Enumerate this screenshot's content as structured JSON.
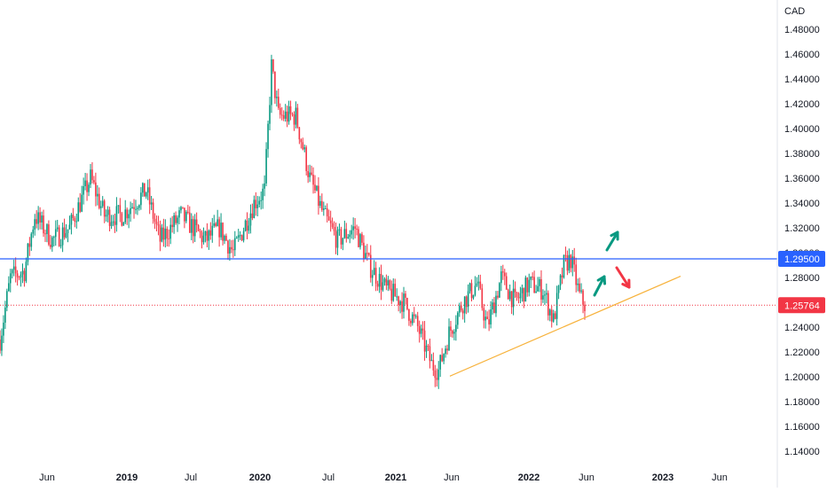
{
  "chart_data": {
    "type": "candlestick",
    "currency": "CAD",
    "ylim": [
      1.13,
      1.49
    ],
    "y_ticks": [
      "1.48000",
      "1.46000",
      "1.44000",
      "1.42000",
      "1.40000",
      "1.38000",
      "1.36000",
      "1.34000",
      "1.32000",
      "1.30000",
      "1.28000",
      "1.26000",
      "1.24000",
      "1.22000",
      "1.20000",
      "1.18000",
      "1.16000",
      "1.14000"
    ],
    "x_ticks": [
      {
        "label": "Jun",
        "bold": false
      },
      {
        "label": "2019",
        "bold": true
      },
      {
        "label": "Jul",
        "bold": false
      },
      {
        "label": "2020",
        "bold": true
      },
      {
        "label": "Jul",
        "bold": false
      },
      {
        "label": "2021",
        "bold": true
      },
      {
        "label": "Jun",
        "bold": false
      },
      {
        "label": "2022",
        "bold": true
      },
      {
        "label": "Jun",
        "bold": false
      },
      {
        "label": "2023",
        "bold": true
      },
      {
        "label": "Jun",
        "bold": false
      }
    ],
    "horizontal_line": {
      "value": 1.295,
      "label": "1.29500",
      "color": "#2962ff"
    },
    "last_price": {
      "value": 1.25764,
      "label": "1.25764",
      "color": "#f23645"
    },
    "trendline": {
      "from": {
        "date": "2021-05-24",
        "value": 1.2005
      },
      "to": {
        "date": "2022-11-14",
        "value": 1.281
      },
      "color": "#f7b23b"
    },
    "arrows": [
      {
        "direction": "up",
        "color": "#089981"
      },
      {
        "direction": "up",
        "color": "#089981"
      },
      {
        "direction": "down",
        "color": "#f23645"
      }
    ],
    "series_description": "Weekly OHLC",
    "up_color": "#089981",
    "down_color": "#f23645",
    "key_points": [
      {
        "t": 0,
        "p": 1.23
      },
      {
        "t": 6,
        "p": 1.28
      },
      {
        "t": 14,
        "p": 1.285
      },
      {
        "t": 20,
        "p": 1.33
      },
      {
        "t": 30,
        "p": 1.31
      },
      {
        "t": 40,
        "p": 1.32
      },
      {
        "t": 52,
        "p": 1.36
      },
      {
        "t": 60,
        "p": 1.33
      },
      {
        "t": 70,
        "p": 1.33
      },
      {
        "t": 84,
        "p": 1.35
      },
      {
        "t": 92,
        "p": 1.31
      },
      {
        "t": 104,
        "p": 1.33
      },
      {
        "t": 118,
        "p": 1.31
      },
      {
        "t": 126,
        "p": 1.32
      },
      {
        "t": 134,
        "p": 1.3
      },
      {
        "t": 146,
        "p": 1.34
      },
      {
        "t": 152,
        "p": 1.35
      },
      {
        "t": 156,
        "p": 1.45
      },
      {
        "t": 160,
        "p": 1.41
      },
      {
        "t": 170,
        "p": 1.41
      },
      {
        "t": 178,
        "p": 1.36
      },
      {
        "t": 186,
        "p": 1.33
      },
      {
        "t": 194,
        "p": 1.31
      },
      {
        "t": 204,
        "p": 1.32
      },
      {
        "t": 212,
        "p": 1.29
      },
      {
        "t": 222,
        "p": 1.27
      },
      {
        "t": 232,
        "p": 1.26
      },
      {
        "t": 240,
        "p": 1.24
      },
      {
        "t": 248,
        "p": 1.21
      },
      {
        "t": 252,
        "p": 1.205
      },
      {
        "t": 258,
        "p": 1.235
      },
      {
        "t": 266,
        "p": 1.26
      },
      {
        "t": 274,
        "p": 1.275
      },
      {
        "t": 280,
        "p": 1.24
      },
      {
        "t": 288,
        "p": 1.28
      },
      {
        "t": 296,
        "p": 1.26
      },
      {
        "t": 304,
        "p": 1.275
      },
      {
        "t": 312,
        "p": 1.27
      },
      {
        "t": 318,
        "p": 1.245
      },
      {
        "t": 324,
        "p": 1.29
      },
      {
        "t": 328,
        "p": 1.295
      },
      {
        "t": 333,
        "p": 1.265
      },
      {
        "t": 336,
        "p": 1.258
      }
    ]
  }
}
